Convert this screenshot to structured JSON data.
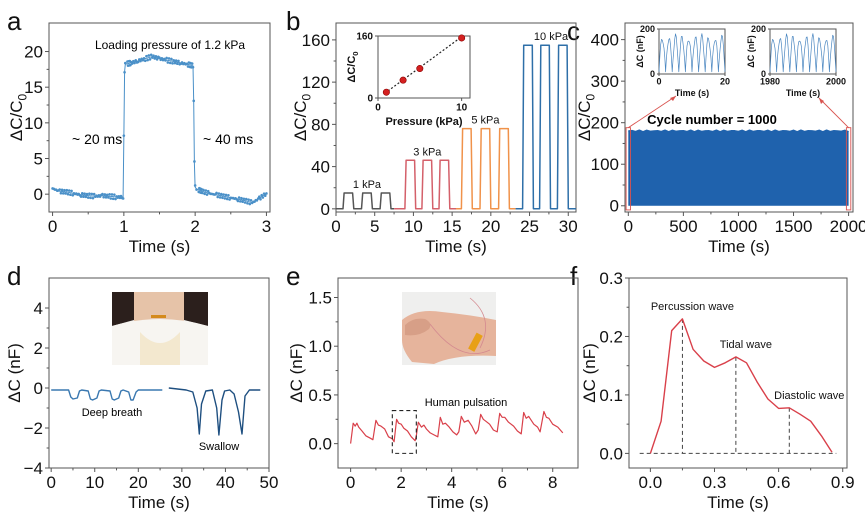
{
  "figure": {
    "panels": [
      "a",
      "b",
      "c",
      "d",
      "e",
      "f"
    ]
  },
  "chart_data": [
    {
      "panel": "a",
      "type": "scatter",
      "title": "",
      "annotation_title": "Loading pressure of 1.2 kPa",
      "annotations": [
        "~ 20 ms",
        "~ 40 ms"
      ],
      "xlabel": "Time (s)",
      "ylabel": "ΔC/C0",
      "xlim": [
        -0.05,
        3.05
      ],
      "ylim": [
        -2.5,
        24
      ],
      "xticks": [
        0,
        1,
        2,
        3
      ],
      "yticks": [
        0,
        5,
        10,
        15,
        20
      ],
      "color": "#4a90c8",
      "series": [
        {
          "name": "response",
          "x": [
            0,
            0.1,
            0.2,
            0.3,
            0.4,
            0.5,
            0.6,
            0.7,
            0.8,
            0.9,
            0.99,
            1.0,
            1.01,
            1.02,
            1.05,
            1.1,
            1.2,
            1.3,
            1.4,
            1.5,
            1.6,
            1.7,
            1.8,
            1.9,
            1.97,
            1.98,
            1.99,
            2.0,
            2.02,
            2.05,
            2.1,
            2.2,
            2.3,
            2.4,
            2.5,
            2.6,
            2.7,
            2.8,
            2.9,
            3.0
          ],
          "y": [
            0.8,
            0.4,
            0.3,
            0.1,
            -0.1,
            -0.2,
            -0.3,
            -0.2,
            -0.3,
            -0.4,
            -0.4,
            8.5,
            17.2,
            18.2,
            18.3,
            18.4,
            18.7,
            19.0,
            19.3,
            19.0,
            18.8,
            18.6,
            18.4,
            18.2,
            18.0,
            13.0,
            4.3,
            1.0,
            0.7,
            0.6,
            0.4,
            0.1,
            -0.1,
            -0.3,
            -0.5,
            -0.7,
            -0.9,
            -1.2,
            -0.6,
            0.1
          ]
        }
      ]
    },
    {
      "panel": "b",
      "type": "line",
      "xlabel": "Time (s)",
      "ylabel": "ΔC/C0",
      "xlim": [
        0,
        31
      ],
      "ylim": [
        -3,
        176
      ],
      "xticks": [
        0,
        5,
        10,
        15,
        20,
        25,
        30
      ],
      "yticks": [
        0,
        40,
        80,
        120,
        160
      ],
      "series": [
        {
          "name": "1 kPa",
          "label": "1 kPa",
          "color": "#555555",
          "peak": 15,
          "pulse_centers": [
            1.6,
            4.0,
            6.4
          ],
          "range": [
            0,
            7.5
          ]
        },
        {
          "name": "3 kPa",
          "label": "3 kPa",
          "color": "#d4606a",
          "peak": 46,
          "pulse_centers": [
            9.6,
            11.8,
            14.0
          ],
          "range": [
            7.5,
            15.5
          ]
        },
        {
          "name": "5 kPa",
          "label": "5 kPa",
          "color": "#f0924a",
          "peak": 76,
          "pulse_centers": [
            16.9,
            19.3,
            21.7
          ],
          "range": [
            15.5,
            23.2
          ]
        },
        {
          "name": "10 kPa",
          "label": "10 kPa",
          "color": "#2e6fa8",
          "peak": 155,
          "pulse_centers": [
            24.8,
            27.0,
            29.3
          ],
          "range": [
            23.2,
            31
          ]
        }
      ],
      "inset": {
        "type": "scatter",
        "xlabel": "Pressure (kPa)",
        "ylabel": "ΔC/C0",
        "xlim": [
          0,
          11
        ],
        "ylim": [
          0,
          160
        ],
        "xticks": [
          0,
          10
        ],
        "yticks": [
          0,
          160
        ],
        "points": {
          "x": [
            1,
            3,
            5,
            10
          ],
          "y": [
            15,
            46,
            76,
            155
          ]
        },
        "fit": {
          "x": [
            0.8,
            10
          ],
          "y": [
            12,
            158
          ]
        },
        "color": "#d42020"
      }
    },
    {
      "panel": "c",
      "type": "area",
      "annotation": "Cycle number = 1000",
      "xlabel": "Time (s)",
      "ylabel": "ΔC/C0",
      "xlim": [
        -30,
        2040
      ],
      "ylim": [
        -15,
        440
      ],
      "xticks": [
        0,
        500,
        1000,
        1500,
        2000
      ],
      "yticks": [
        0,
        100,
        200,
        300,
        400
      ],
      "band": {
        "x": [
          0,
          2000
        ],
        "ymin": 0,
        "ymax": 180
      },
      "color": "#1f62ad",
      "highlight_color": "#d9534f",
      "insets": [
        {
          "ylabel": "ΔC (nF)",
          "xlabel": "Time (s)",
          "xlim": [
            0,
            20
          ],
          "ylim": [
            0,
            200
          ],
          "xticks": [
            0,
            20
          ],
          "yticks": [
            0,
            200
          ],
          "cycles": 10,
          "peak": 180
        },
        {
          "ylabel": "ΔC (nF)",
          "xlabel": "Time (s)",
          "xlim": [
            1980,
            2000
          ],
          "ylim": [
            0,
            200
          ],
          "xticks": [
            1980,
            2000
          ],
          "yticks": [
            0,
            200
          ],
          "cycles": 10,
          "peak": 180
        }
      ]
    },
    {
      "panel": "d",
      "type": "line",
      "xlabel": "Time (s)",
      "ylabel": "ΔC (nF)",
      "xlim": [
        -0.5,
        50
      ],
      "ylim": [
        -4,
        5.5
      ],
      "xticks": [
        0,
        10,
        20,
        30,
        40,
        50
      ],
      "yticks": [
        -4,
        -2,
        0,
        2,
        4
      ],
      "annotations": [
        "Deep breath",
        "Swallow"
      ],
      "photo_caption": "neck-sensor-photo",
      "series": [
        {
          "name": "Deep breath",
          "color": "#3a78b0",
          "x": [
            0,
            4,
            4.5,
            5,
            6,
            6.5,
            7,
            8.5,
            9,
            9.5,
            10.5,
            11,
            11.5,
            13.5,
            14,
            14.5,
            15.5,
            16,
            16.5,
            17.8,
            18.3,
            18.8,
            19.5,
            20,
            25.5
          ],
          "y": [
            -0.1,
            -0.1,
            -0.45,
            -0.55,
            -0.5,
            -0.15,
            -0.1,
            -0.15,
            -0.55,
            -0.6,
            -0.5,
            -0.15,
            -0.1,
            -0.15,
            -0.55,
            -0.6,
            -0.5,
            -0.15,
            -0.1,
            -0.2,
            -0.6,
            -0.6,
            -0.2,
            -0.1,
            -0.1
          ]
        },
        {
          "name": "Swallow",
          "color": "#1e4f80",
          "x": [
            27,
            31,
            32.5,
            33.5,
            34,
            34.5,
            35.5,
            37,
            38,
            38.5,
            39.2,
            39.8,
            41,
            42,
            43,
            43.8,
            44.5,
            45.5,
            48
          ],
          "y": [
            0,
            -0.1,
            -0.2,
            -1,
            -2.3,
            -0.8,
            -0.15,
            -0.1,
            -1,
            -2.35,
            -0.6,
            -0.15,
            -0.1,
            -0.3,
            -1.2,
            -2.3,
            -0.4,
            -0.1,
            -0.1
          ]
        }
      ]
    },
    {
      "panel": "e",
      "type": "line",
      "xlabel": "Time (s)",
      "ylabel": "ΔC (nF)",
      "xlim": [
        -0.5,
        9
      ],
      "ylim": [
        -0.25,
        1.7
      ],
      "xticks": [
        0,
        2,
        4,
        6,
        8
      ],
      "yticks": [
        0.0,
        0.5,
        1.0,
        1.5
      ],
      "annotation": "Human pulsation",
      "photo_caption": "wrist-sensor-photo",
      "highlight_box": {
        "x": [
          1.65,
          2.6
        ],
        "y": [
          -0.1,
          0.34
        ]
      },
      "color": "#d9404a",
      "series": [
        {
          "name": "pulse",
          "x": [
            0,
            0.1,
            0.18,
            0.25,
            0.32,
            0.45,
            0.6,
            0.75,
            0.88,
            1.0,
            1.1,
            1.2,
            1.35,
            1.5,
            1.65,
            1.72,
            1.82,
            1.9,
            2.0,
            2.1,
            2.25,
            2.4,
            2.55,
            2.6,
            2.68,
            2.8,
            2.9,
            3.0,
            3.15,
            3.3,
            3.45,
            3.55,
            3.65,
            3.75,
            3.9,
            4.05,
            4.2,
            4.28,
            4.38,
            4.5,
            4.65,
            4.8,
            4.95,
            5.05,
            5.15,
            5.25,
            5.35,
            5.5,
            5.65,
            5.8,
            5.9,
            6.0,
            6.1,
            6.25,
            6.45,
            6.6,
            6.75,
            6.85,
            6.95,
            7.05,
            7.25,
            7.4,
            7.5,
            7.65,
            7.75,
            7.85,
            8.0,
            8.2,
            8.4
          ],
          "y": [
            0.0,
            0.21,
            0.18,
            0.21,
            0.17,
            0.13,
            0.08,
            0.06,
            0.04,
            0.24,
            0.19,
            0.18,
            0.15,
            0.07,
            0.05,
            0.02,
            0.25,
            0.21,
            0.2,
            0.16,
            0.13,
            0.07,
            0.03,
            0.08,
            0.22,
            0.17,
            0.19,
            0.15,
            0.11,
            0.09,
            0.07,
            0.27,
            0.2,
            0.21,
            0.17,
            0.12,
            0.09,
            0.12,
            0.28,
            0.22,
            0.24,
            0.18,
            0.1,
            0.14,
            0.3,
            0.25,
            0.23,
            0.2,
            0.14,
            0.12,
            0.31,
            0.27,
            0.27,
            0.22,
            0.18,
            0.13,
            0.1,
            0.32,
            0.26,
            0.28,
            0.2,
            0.17,
            0.12,
            0.33,
            0.27,
            0.26,
            0.2,
            0.17,
            0.11
          ]
        }
      ]
    },
    {
      "panel": "f",
      "type": "line",
      "xlabel": "Time (s)",
      "ylabel": "ΔC (nF)",
      "xlim": [
        -0.1,
        0.92
      ],
      "ylim": [
        -0.025,
        0.3
      ],
      "xticks": [
        0.0,
        0.3,
        0.6,
        0.9
      ],
      "yticks": [
        0.0,
        0.1,
        0.2,
        0.3
      ],
      "color": "#d9404a",
      "annotations": [
        {
          "label": "Percussion wave",
          "x": 0.15,
          "y": 0.23
        },
        {
          "label": "Tidal wave",
          "x": 0.4,
          "y": 0.165
        },
        {
          "label": "Diastolic wave",
          "x": 0.65,
          "y": 0.078
        }
      ],
      "baseline": 0.0,
      "series": [
        {
          "name": "single pulse",
          "x": [
            0.0,
            0.05,
            0.1,
            0.15,
            0.2,
            0.25,
            0.3,
            0.35,
            0.4,
            0.45,
            0.5,
            0.55,
            0.6,
            0.65,
            0.7,
            0.75,
            0.8,
            0.85
          ],
          "y": [
            0.0,
            0.055,
            0.21,
            0.23,
            0.178,
            0.158,
            0.147,
            0.155,
            0.165,
            0.155,
            0.122,
            0.093,
            0.077,
            0.078,
            0.067,
            0.055,
            0.03,
            0.002
          ]
        }
      ]
    }
  ]
}
